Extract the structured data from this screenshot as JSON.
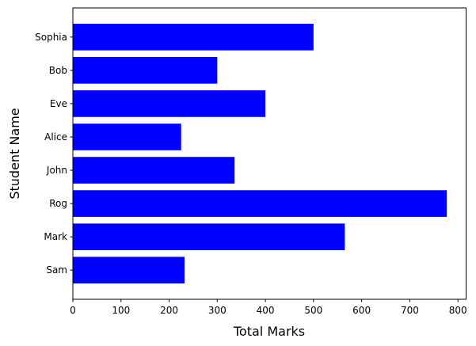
{
  "chart_data": {
    "type": "bar",
    "orientation": "horizontal",
    "categories": [
      "Sam",
      "Mark",
      "Rog",
      "John",
      "Alice",
      "Eve",
      "Bob",
      "Sophia"
    ],
    "values": [
      232,
      565,
      777,
      336,
      225,
      400,
      300,
      500
    ],
    "xlabel": "Total Marks",
    "ylabel": "Student Name",
    "xlim": [
      0,
      817
    ],
    "xticks": [
      0,
      100,
      200,
      300,
      400,
      500,
      600,
      700,
      800
    ],
    "grid": false,
    "bar_color": "#0000ff"
  }
}
